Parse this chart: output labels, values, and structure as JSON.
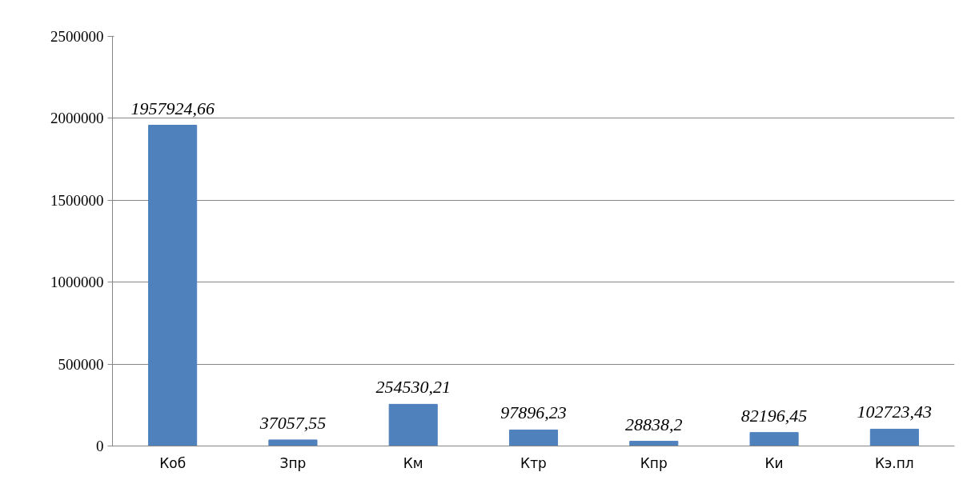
{
  "chart_data": {
    "type": "bar",
    "categories": [
      "Коб",
      "Зпр",
      "Км",
      "Ктр",
      "Кпр",
      "Ки",
      "Кэ.пл"
    ],
    "values": [
      1957924.66,
      37057.55,
      254530.21,
      97896.23,
      28838.2,
      82196.45,
      102723.43
    ],
    "value_labels": [
      "1957924,66",
      "37057,55",
      "254530,21",
      "97896,23",
      "28838,2",
      "82196,45",
      "102723,43"
    ],
    "color": "#4f81bd",
    "ylim": [
      0,
      2500000
    ],
    "yticks": [
      0,
      500000,
      1000000,
      1500000,
      2000000,
      2500000
    ],
    "grid": "y"
  }
}
